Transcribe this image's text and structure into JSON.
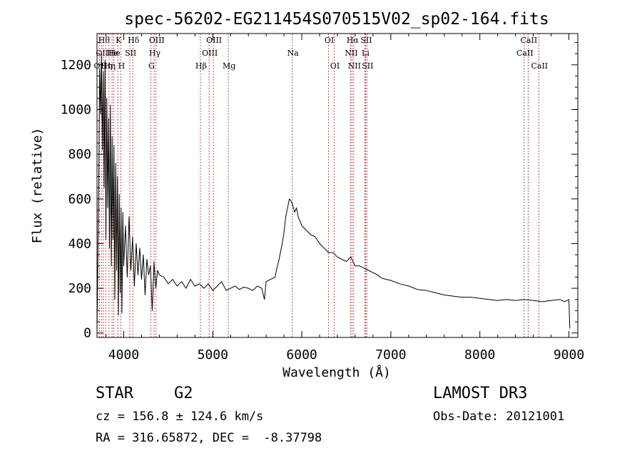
{
  "chart_data": {
    "type": "line",
    "title": "spec-56202-EG211454S070515V02_sp02-164.fits",
    "xlabel": "Wavelength (Å)",
    "ylabel": "Flux (relative)",
    "xlim": [
      3700,
      9100
    ],
    "ylim": [
      -20,
      1340
    ],
    "xticks": [
      4000,
      5000,
      6000,
      7000,
      8000,
      9000
    ],
    "yticks": [
      0,
      200,
      400,
      600,
      800,
      1000,
      1200
    ],
    "line_color": "#000000",
    "marker_color": "#b22222",
    "series": [
      {
        "name": "flux",
        "x": [
          3700,
          3720,
          3730,
          3740,
          3750,
          3760,
          3770,
          3780,
          3790,
          3800,
          3810,
          3820,
          3830,
          3840,
          3850,
          3860,
          3870,
          3880,
          3890,
          3900,
          3910,
          3920,
          3930,
          3940,
          3950,
          3960,
          3970,
          3980,
          3990,
          4000,
          4020,
          4040,
          4060,
          4080,
          4100,
          4120,
          4140,
          4160,
          4180,
          4200,
          4220,
          4240,
          4260,
          4280,
          4300,
          4320,
          4340,
          4360,
          4380,
          4400,
          4450,
          4500,
          4550,
          4600,
          4650,
          4700,
          4750,
          4800,
          4850,
          4900,
          4950,
          5000,
          5050,
          5100,
          5150,
          5200,
          5250,
          5300,
          5350,
          5400,
          5450,
          5500,
          5550,
          5580,
          5600,
          5650,
          5700,
          5720,
          5740,
          5760,
          5780,
          5800,
          5820,
          5840,
          5860,
          5880,
          5900,
          5920,
          5940,
          5960,
          5980,
          6000,
          6050,
          6100,
          6150,
          6200,
          6250,
          6300,
          6350,
          6400,
          6450,
          6500,
          6550,
          6600,
          6650,
          6700,
          6750,
          6800,
          6850,
          6900,
          6950,
          7000,
          7100,
          7200,
          7300,
          7400,
          7500,
          7600,
          7700,
          7800,
          7900,
          8000,
          8100,
          8200,
          8300,
          8400,
          8500,
          8600,
          8700,
          8800,
          8900,
          8950,
          9000,
          9010
        ],
        "y": [
          0,
          700,
          1180,
          980,
          1250,
          820,
          1170,
          650,
          1220,
          420,
          1050,
          560,
          960,
          380,
          1020,
          300,
          880,
          420,
          840,
          150,
          760,
          280,
          700,
          80,
          620,
          180,
          560,
          90,
          540,
          300,
          480,
          250,
          520,
          280,
          430,
          210,
          400,
          260,
          380,
          240,
          350,
          170,
          330,
          260,
          300,
          100,
          320,
          200,
          280,
          260,
          250,
          220,
          240,
          210,
          230,
          200,
          240,
          210,
          220,
          200,
          220,
          190,
          210,
          230,
          190,
          200,
          210,
          195,
          205,
          200,
          190,
          210,
          200,
          150,
          230,
          240,
          250,
          290,
          320,
          360,
          400,
          450,
          520,
          560,
          600,
          590,
          570,
          540,
          560,
          520,
          500,
          480,
          460,
          440,
          430,
          400,
          380,
          360,
          360,
          340,
          330,
          320,
          340,
          300,
          300,
          290,
          280,
          270,
          260,
          245,
          240,
          235,
          220,
          210,
          195,
          190,
          180,
          170,
          165,
          160,
          160,
          155,
          150,
          145,
          150,
          145,
          150,
          145,
          140,
          145,
          150,
          140,
          150,
          20
        ]
      }
    ],
    "line_markers": [
      {
        "w": 3727,
        "label": "OII",
        "row": 2
      },
      {
        "w": 3750,
        "label": "OII",
        "row": 1
      },
      {
        "w": 3771,
        "label": "Hθ",
        "row": 0
      },
      {
        "w": 3798,
        "label": "Hη",
        "row": 2
      },
      {
        "w": 3835,
        "label": "Hη",
        "row": 2
      },
      {
        "w": 3869,
        "label": "He",
        "row": 1
      },
      {
        "w": 3889,
        "label": "He",
        "row": 1
      },
      {
        "w": 3934,
        "label": "K",
        "row": 0
      },
      {
        "w": 3968,
        "label": "H",
        "row": 2
      },
      {
        "w": 4069,
        "label": "SII",
        "row": 1
      },
      {
        "w": 4102,
        "label": "Hδ",
        "row": 0
      },
      {
        "w": 4304,
        "label": "G",
        "row": 2
      },
      {
        "w": 4341,
        "label": "Hγ",
        "row": 1
      },
      {
        "w": 4363,
        "label": "OIII",
        "row": 0
      },
      {
        "w": 4861,
        "label": "Hβ",
        "row": 2
      },
      {
        "w": 4959,
        "label": "OIII",
        "row": 1
      },
      {
        "w": 5007,
        "label": "OIII",
        "row": 0
      },
      {
        "w": 5175,
        "label": "Mg",
        "row": 2
      },
      {
        "w": 5893,
        "label": "Na",
        "row": 1
      },
      {
        "w": 6300,
        "label": "OI",
        "row": 0
      },
      {
        "w": 6364,
        "label": "OI",
        "row": 2
      },
      {
        "w": 6548,
        "label": "NII",
        "row": 1
      },
      {
        "w": 6563,
        "label": "Hα",
        "row": 0
      },
      {
        "w": 6583,
        "label": "NII",
        "row": 2
      },
      {
        "w": 6708,
        "label": "Li",
        "row": 1
      },
      {
        "w": 6716,
        "label": "SII",
        "row": 0
      },
      {
        "w": 6731,
        "label": "SII",
        "row": 2
      },
      {
        "w": 8498,
        "label": "CaII",
        "row": 1
      },
      {
        "w": 8542,
        "label": "CaII",
        "row": 0
      },
      {
        "w": 8662,
        "label": "CaII",
        "row": 2
      }
    ]
  },
  "info": {
    "object_class": "STAR",
    "subclass": "G2",
    "survey": "LAMOST DR3",
    "redshift": "cz = 156.8 ± 124.6 km/s",
    "obs_date": "Obs-Date: 20121001",
    "coords": "RA = 316.65872, DEC =  -8.37798"
  }
}
